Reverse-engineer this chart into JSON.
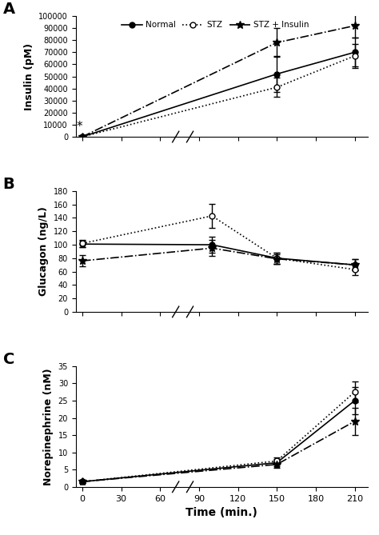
{
  "panel_A": {
    "title": "A",
    "ylabel": "Insulin (pM)",
    "ylim": [
      0,
      100000
    ],
    "yticks": [
      0,
      10000,
      20000,
      30000,
      40000,
      50000,
      60000,
      70000,
      80000,
      90000,
      100000
    ],
    "normal": {
      "x": [
        0,
        150,
        210
      ],
      "y": [
        0,
        52000,
        70000
      ],
      "yerr": [
        500,
        15000,
        12000
      ]
    },
    "stz": {
      "x": [
        0,
        150,
        210
      ],
      "y": [
        0,
        41000,
        67000
      ],
      "yerr": [
        500,
        8000,
        10000
      ]
    },
    "stz_ins": {
      "x": [
        0,
        150,
        210
      ],
      "y": [
        0,
        78000,
        92000
      ],
      "yerr": [
        500,
        12000,
        10000
      ]
    },
    "star_x": 0,
    "star_y": 8000
  },
  "panel_B": {
    "title": "B",
    "ylabel": "Glucagon (ng/L)",
    "ylim": [
      0,
      180
    ],
    "yticks": [
      0,
      20,
      40,
      60,
      80,
      100,
      120,
      140,
      160,
      180
    ],
    "normal": {
      "x": [
        0,
        100,
        150,
        210
      ],
      "y": [
        101,
        100,
        80,
        70
      ],
      "yerr": [
        5,
        12,
        8,
        8
      ]
    },
    "stz": {
      "x": [
        0,
        100,
        150,
        210
      ],
      "y": [
        102,
        143,
        80,
        63
      ],
      "yerr": [
        5,
        18,
        8,
        8
      ]
    },
    "stz_ins": {
      "x": [
        0,
        100,
        150,
        210
      ],
      "y": [
        76,
        95,
        79,
        70
      ],
      "yerr": [
        8,
        12,
        7,
        8
      ]
    }
  },
  "panel_C": {
    "title": "C",
    "ylabel": "Norepinephrine (nM)",
    "xlabel": "Time (min.)",
    "ylim": [
      0,
      35
    ],
    "yticks": [
      0,
      5,
      10,
      15,
      20,
      25,
      30,
      35
    ],
    "normal": {
      "x": [
        0,
        150,
        210
      ],
      "y": [
        1.5,
        7.0,
        25.0
      ],
      "yerr": [
        0.3,
        1.0,
        4.0
      ]
    },
    "stz": {
      "x": [
        0,
        150,
        210
      ],
      "y": [
        1.5,
        7.5,
        27.5
      ],
      "yerr": [
        0.3,
        1.0,
        3.0
      ]
    },
    "stz_ins": {
      "x": [
        0,
        150,
        210
      ],
      "y": [
        1.5,
        6.5,
        19.0
      ],
      "yerr": [
        0.3,
        1.0,
        4.0
      ]
    }
  },
  "xticks": [
    0,
    30,
    60,
    90,
    120,
    150,
    180,
    210
  ],
  "xlim": [
    -5,
    220
  ],
  "line_normal": {
    "color": "black",
    "marker": "o",
    "ms": 5,
    "ls": "-",
    "lw": 1.2,
    "mfc": "black"
  },
  "line_stz": {
    "color": "black",
    "marker": "o",
    "ms": 5,
    "ls": ":",
    "lw": 1.2,
    "mfc": "white"
  },
  "line_stz_ins": {
    "color": "black",
    "marker": "*",
    "ms": 7,
    "ls": "-.",
    "lw": 1.2,
    "mfc": "black"
  },
  "legend_labels": [
    "Normal",
    "STZ",
    "STZ + Insulin"
  ],
  "capsize": 3,
  "elinewidth": 1.0
}
